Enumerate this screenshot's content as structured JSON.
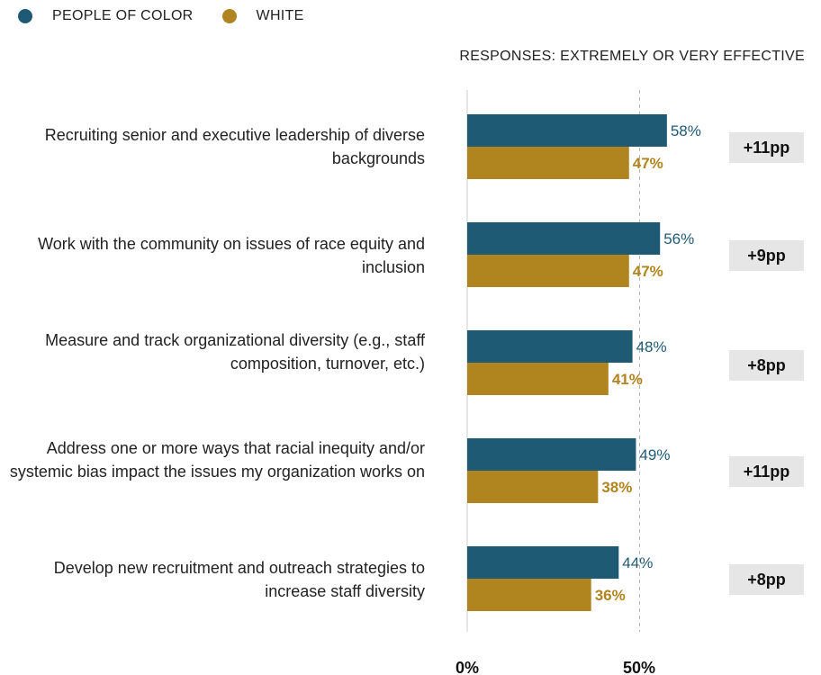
{
  "legend": [
    {
      "name": "PEOPLE OF COLOR",
      "color": "#1f5a74"
    },
    {
      "name": "WHITE",
      "color": "#b0841f"
    }
  ],
  "subtitle": "RESPONSES: EXTREMELY OR VERY EFFECTIVE",
  "chart_data": {
    "type": "bar",
    "orientation": "horizontal",
    "categories": [
      "Recruiting senior and executive leadership of diverse backgrounds",
      "Work with the community on issues of race equity and inclusion",
      "Measure and track organizational diversity (e.g., staff composition, turnover, etc.)",
      "Address one or more ways that racial inequity and/or systemic bias impact the issues my organization works on",
      "Develop new recruitment and outreach strategies to increase staff diversity"
    ],
    "series": [
      {
        "name": "PEOPLE OF COLOR",
        "values": [
          58,
          56,
          48,
          49,
          44
        ],
        "labels": [
          "58%",
          "56%",
          "48%",
          "49%",
          "44%"
        ],
        "color": "#1f5a74"
      },
      {
        "name": "WHITE",
        "values": [
          47,
          47,
          41,
          38,
          36
        ],
        "labels": [
          "47%",
          "47%",
          "41%",
          "38%",
          "36%"
        ],
        "color": "#b0841f"
      }
    ],
    "differences": [
      "+11pp",
      "+9pp",
      "+8pp",
      "+11pp",
      "+8pp"
    ],
    "xlim": [
      0,
      100
    ],
    "xticks": [
      "0%",
      "50%"
    ],
    "reference_line": 50,
    "grid": false,
    "legend_position": "top-left"
  }
}
